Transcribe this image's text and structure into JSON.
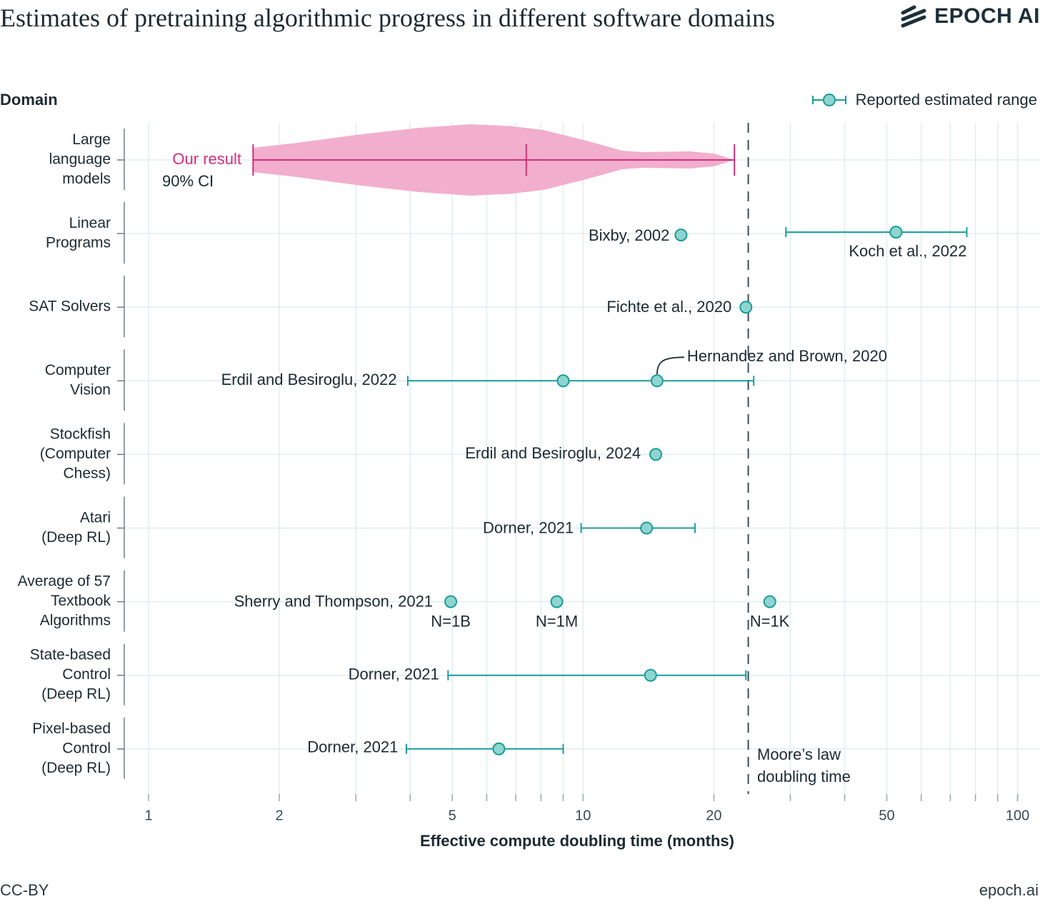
{
  "title": "Estimates of pretraining algorithmic progress in different software domains",
  "logo_text": "EPOCH AI",
  "footer": {
    "license": "CC-BY",
    "site": "epoch.ai"
  },
  "colors": {
    "teal": "#1a9c9a",
    "teal_fill": "#8ed5cf",
    "pink_fill": "#f2aecd",
    "pink_line": "#d42f78",
    "grid": "#e2eded",
    "text": "#1c2a31"
  },
  "chart_data": {
    "type": "scatter",
    "title": "Estimates of pretraining algorithmic progress in different software domains",
    "xlabel": "Effective compute doubling time (months)",
    "ylabel": "Domain",
    "xscale": "log",
    "xlim": [
      0.9,
      115
    ],
    "xticks": [
      1,
      2,
      5,
      10,
      20,
      50,
      100
    ],
    "xtick_labels": [
      "1",
      "2",
      "5",
      "10",
      "20",
      "50",
      "100"
    ],
    "legend": {
      "label": "Reported estimated range",
      "placement": "top-right"
    },
    "categories": [
      "Large language models",
      "Linear Programs",
      "SAT Solvers",
      "Computer Vision",
      "Stockfish (Computer Chess)",
      "Atari (Deep RL)",
      "Average of 57 Textbook Algorithms",
      "State-based Control (Deep RL)",
      "Pixel-based Control (Deep RL)"
    ],
    "category_lines": [
      [
        "Large",
        "language",
        "models"
      ],
      [
        "Linear",
        "Programs"
      ],
      [
        "SAT Solvers"
      ],
      [
        "Computer",
        "Vision"
      ],
      [
        "Stockfish",
        "(Computer",
        "Chess)"
      ],
      [
        "Atari",
        "(Deep RL)"
      ],
      [
        "Average of 57",
        "Textbook",
        "Algorithms"
      ],
      [
        "State-based",
        "Control",
        "(Deep RL)"
      ],
      [
        "Pixel-based",
        "Control",
        "(Deep RL)"
      ]
    ],
    "our_result": {
      "category": 0,
      "label": "Our result",
      "sublabel": "90% CI",
      "ci_low": 1.74,
      "median": 7.4,
      "ci_high": 22.3,
      "violin_density": [
        [
          1.74,
          0.34
        ],
        [
          2.2,
          0.48
        ],
        [
          3.0,
          0.7
        ],
        [
          4.2,
          0.9
        ],
        [
          5.5,
          1.0
        ],
        [
          6.8,
          0.95
        ],
        [
          8.1,
          0.84
        ],
        [
          10.1,
          0.55
        ],
        [
          12.3,
          0.26
        ],
        [
          13.7,
          0.22
        ],
        [
          15.5,
          0.23
        ],
        [
          17.6,
          0.24
        ],
        [
          20.0,
          0.18
        ],
        [
          22.3,
          0.0
        ]
      ]
    },
    "estimates": [
      {
        "category": 1,
        "label": "Bixby, 2002",
        "value": 16.8
      },
      {
        "category": 1,
        "label": "Koch et al., 2022",
        "value": 52.5,
        "low": 29.3,
        "high": 76.4
      },
      {
        "category": 2,
        "label": "Fichte et al., 2020",
        "value": 23.7
      },
      {
        "category": 3,
        "label": "Erdil and Besiroglu, 2022",
        "value": 9.0,
        "low": 3.95,
        "high": 24.7
      },
      {
        "category": 3,
        "label": "Hernandez and Brown, 2020",
        "value": 14.8
      },
      {
        "category": 4,
        "label": "Erdil and Besiroglu, 2024",
        "value": 14.7
      },
      {
        "category": 5,
        "label": "Dorner, 2021",
        "value": 14.0,
        "low": 9.9,
        "high": 18.1
      },
      {
        "category": 6,
        "label": "Sherry and Thompson, 2021",
        "value": 4.96,
        "note": "N=1B"
      },
      {
        "category": 6,
        "label": "",
        "value": 8.7,
        "note": "N=1M"
      },
      {
        "category": 6,
        "label": "",
        "value": 26.9,
        "note": "N=1K"
      },
      {
        "category": 7,
        "label": "Dorner, 2021",
        "value": 14.3,
        "low": 4.89,
        "high": 23.7
      },
      {
        "category": 8,
        "label": "Dorner, 2021",
        "value": 6.4,
        "low": 3.92,
        "high": 9.0
      }
    ],
    "reference_line": {
      "value": 24,
      "label_lines": [
        "Moore’s law",
        "doubling time"
      ]
    }
  }
}
